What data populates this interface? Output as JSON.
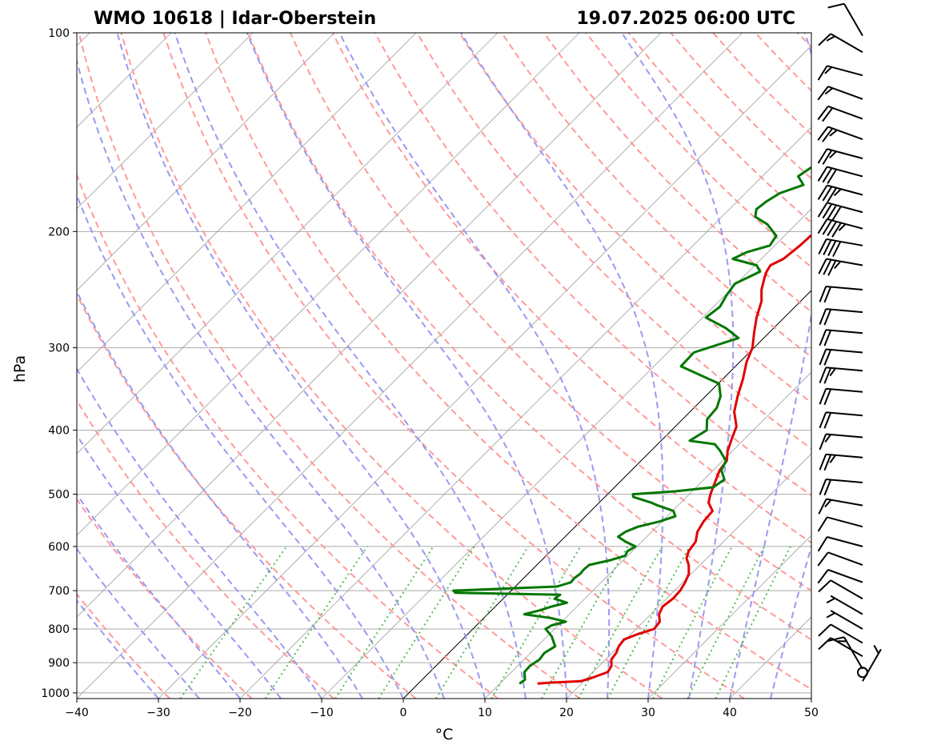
{
  "header": {
    "station": "WMO 10618 | Idar-Oberstein",
    "datetime": "19.07.2025 06:00 UTC"
  },
  "chart_data": {
    "type": "line",
    "subtype": "skew-t log-p diagram",
    "xlabel": "°C",
    "ylabel": "hPa",
    "xlim": [
      -40,
      50
    ],
    "ylim": [
      1020,
      100
    ],
    "y_scale": "log",
    "x_ticks": [
      -40,
      -30,
      -20,
      -10,
      0,
      10,
      20,
      30,
      40,
      50
    ],
    "x_tick_labels": [
      "−40",
      "−30",
      "−20",
      "−10",
      "0",
      "10",
      "20",
      "30",
      "40",
      "50"
    ],
    "y_ticks": [
      100,
      200,
      300,
      400,
      500,
      600,
      700,
      800,
      900,
      1000
    ],
    "y_tick_labels": [
      "100",
      "200",
      "300",
      "400",
      "500",
      "600",
      "700",
      "800",
      "900",
      "1000"
    ],
    "grid": true,
    "colors": {
      "temperature": "#e00000",
      "dewpoint": "#007700",
      "dry_adiabats": "#ff9a9a",
      "moist_adiabats": "#9a9af0",
      "mixing_ratio": "#55bb55",
      "isotherms": "#888888",
      "zero_isotherm": "#000000",
      "grid": "#aaaaaa"
    },
    "series": [
      {
        "key": "temperature",
        "points": [
          [
            968,
            14.6
          ],
          [
            965,
            16.0
          ],
          [
            960,
            19.6
          ],
          [
            950,
            20.5
          ],
          [
            930,
            21.8
          ],
          [
            910,
            21.5
          ],
          [
            890,
            20.7
          ],
          [
            870,
            20.5
          ],
          [
            850,
            20.0
          ],
          [
            830,
            19.8
          ],
          [
            815,
            20.8
          ],
          [
            800,
            22.2
          ],
          [
            780,
            22.0
          ],
          [
            760,
            21.0
          ],
          [
            740,
            20.5
          ],
          [
            720,
            20.8
          ],
          [
            700,
            20.7
          ],
          [
            680,
            20.3
          ],
          [
            660,
            19.7
          ],
          [
            640,
            18.6
          ],
          [
            625,
            17.5
          ],
          [
            610,
            16.9
          ],
          [
            590,
            16.6
          ],
          [
            570,
            15.6
          ],
          [
            550,
            15.1
          ],
          [
            530,
            14.9
          ],
          [
            515,
            13.4
          ],
          [
            500,
            12.6
          ],
          [
            480,
            11.7
          ],
          [
            460,
            10.8
          ],
          [
            445,
            10.5
          ],
          [
            430,
            9.4
          ],
          [
            410,
            8.3
          ],
          [
            395,
            7.5
          ],
          [
            375,
            5.4
          ],
          [
            355,
            3.9
          ],
          [
            335,
            2.5
          ],
          [
            315,
            0.8
          ],
          [
            300,
            -0.2
          ],
          [
            285,
            -1.8
          ],
          [
            270,
            -3.4
          ],
          [
            255,
            -4.8
          ],
          [
            245,
            -6.2
          ],
          [
            235,
            -7.3
          ],
          [
            230,
            -7.8
          ],
          [
            225,
            -8.1
          ],
          [
            220,
            -7.3
          ],
          [
            210,
            -6.9
          ],
          [
            203,
            -6.8
          ],
          [
            197,
            -5.6
          ],
          [
            190,
            -3.6
          ],
          [
            185,
            -2.4
          ],
          [
            178,
            -1.2
          ],
          [
            172,
            0.2
          ],
          [
            167,
            1.1
          ],
          [
            162,
            2.4
          ],
          [
            155,
            3.3
          ],
          [
            148,
            4.3
          ],
          [
            143,
            5.3
          ],
          [
            138,
            6.7
          ],
          [
            132,
            7.6
          ],
          [
            126,
            8.4
          ],
          [
            121,
            9.6
          ],
          [
            116,
            10.4
          ],
          [
            111,
            11.2
          ],
          [
            106,
            12.3
          ],
          [
            101,
            13.6
          ]
        ]
      },
      {
        "key": "dewpoint",
        "points": [
          [
            968,
            12.4
          ],
          [
            955,
            12.6
          ],
          [
            930,
            11.6
          ],
          [
            910,
            11.5
          ],
          [
            890,
            11.9
          ],
          [
            870,
            11.7
          ],
          [
            850,
            12.2
          ],
          [
            820,
            10.5
          ],
          [
            800,
            8.9
          ],
          [
            790,
            9.2
          ],
          [
            780,
            10.5
          ],
          [
            770,
            8.2
          ],
          [
            760,
            4.5
          ],
          [
            750,
            5.9
          ],
          [
            740,
            6.9
          ],
          [
            730,
            8.3
          ],
          [
            720,
            6.3
          ],
          [
            710,
            6.5
          ],
          [
            705,
            -6.6
          ],
          [
            700,
            -7.1
          ],
          [
            690,
            5.1
          ],
          [
            680,
            6.3
          ],
          [
            670,
            6.2
          ],
          [
            660,
            6.4
          ],
          [
            650,
            6.3
          ],
          [
            640,
            6.4
          ],
          [
            630,
            8.3
          ],
          [
            620,
            9.7
          ],
          [
            610,
            9.4
          ],
          [
            600,
            9.8
          ],
          [
            590,
            8.0
          ],
          [
            580,
            6.5
          ],
          [
            570,
            6.8
          ],
          [
            560,
            7.7
          ],
          [
            550,
            9.7
          ],
          [
            540,
            11.0
          ],
          [
            530,
            10.1
          ],
          [
            520,
            7.5
          ],
          [
            515,
            6.4
          ],
          [
            505,
            3.5
          ],
          [
            500,
            3.1
          ],
          [
            495,
            7.9
          ],
          [
            488,
            12.1
          ],
          [
            475,
            12.5
          ],
          [
            460,
            11.0
          ],
          [
            445,
            10.4
          ],
          [
            430,
            8.5
          ],
          [
            420,
            7.0
          ],
          [
            415,
            3.5
          ],
          [
            400,
            4.3
          ],
          [
            385,
            3.0
          ],
          [
            370,
            2.8
          ],
          [
            355,
            1.8
          ],
          [
            340,
            0.1
          ],
          [
            320,
            -6.7
          ],
          [
            305,
            -6.8
          ],
          [
            290,
            -3.1
          ],
          [
            280,
            -5.9
          ],
          [
            270,
            -9.6
          ],
          [
            260,
            -9.2
          ],
          [
            250,
            -9.8
          ],
          [
            240,
            -10.2
          ],
          [
            230,
            -8.6
          ],
          [
            225,
            -9.8
          ],
          [
            220,
            -13.5
          ],
          [
            215,
            -12.6
          ],
          [
            210,
            -10.6
          ],
          [
            203,
            -11.0
          ],
          [
            195,
            -13.5
          ],
          [
            190,
            -15.9
          ],
          [
            185,
            -16.7
          ],
          [
            180,
            -16.4
          ],
          [
            175,
            -15.8
          ],
          [
            170,
            -13.9
          ],
          [
            165,
            -15.6
          ],
          [
            160,
            -15.1
          ],
          [
            155,
            -14.2
          ],
          [
            150,
            -13.6
          ],
          [
            145,
            -12.4
          ],
          [
            140,
            -10.9
          ],
          [
            135,
            -9.6
          ],
          [
            128,
            -8.3
          ],
          [
            120,
            -7.5
          ],
          [
            112,
            -5.9
          ],
          [
            106,
            -4.6
          ],
          [
            101,
            -3.0
          ]
        ]
      }
    ],
    "wind_barbs": {
      "calm_at_hPa": 968,
      "barbs": [
        {
          "p": 960,
          "dir": 30,
          "speed": 5
        },
        {
          "p": 920,
          "dir": 330,
          "speed": 15
        },
        {
          "p": 880,
          "dir": 300,
          "speed": 10
        },
        {
          "p": 840,
          "dir": 300,
          "speed": 10
        },
        {
          "p": 800,
          "dir": 300,
          "speed": 5
        },
        {
          "p": 760,
          "dir": 300,
          "speed": 5
        },
        {
          "p": 720,
          "dir": 300,
          "speed": 10
        },
        {
          "p": 680,
          "dir": 290,
          "speed": 10
        },
        {
          "p": 640,
          "dir": 290,
          "speed": 10
        },
        {
          "p": 600,
          "dir": 285,
          "speed": 10
        },
        {
          "p": 560,
          "dir": 285,
          "speed": 10
        },
        {
          "p": 520,
          "dir": 280,
          "speed": 15
        },
        {
          "p": 480,
          "dir": 275,
          "speed": 20
        },
        {
          "p": 440,
          "dir": 275,
          "speed": 25
        },
        {
          "p": 410,
          "dir": 275,
          "speed": 15
        },
        {
          "p": 380,
          "dir": 275,
          "speed": 20
        },
        {
          "p": 350,
          "dir": 275,
          "speed": 20
        },
        {
          "p": 325,
          "dir": 275,
          "speed": 25
        },
        {
          "p": 305,
          "dir": 275,
          "speed": 20
        },
        {
          "p": 285,
          "dir": 275,
          "speed": 20
        },
        {
          "p": 265,
          "dir": 275,
          "speed": 20
        },
        {
          "p": 245,
          "dir": 275,
          "speed": 20
        },
        {
          "p": 225,
          "dir": 280,
          "speed": 35
        },
        {
          "p": 210,
          "dir": 280,
          "speed": 40
        },
        {
          "p": 198,
          "dir": 285,
          "speed": 45
        },
        {
          "p": 187,
          "dir": 285,
          "speed": 40
        },
        {
          "p": 176,
          "dir": 285,
          "speed": 35
        },
        {
          "p": 165,
          "dir": 285,
          "speed": 30
        },
        {
          "p": 155,
          "dir": 285,
          "speed": 25
        },
        {
          "p": 145,
          "dir": 290,
          "speed": 25
        },
        {
          "p": 135,
          "dir": 290,
          "speed": 20
        },
        {
          "p": 126,
          "dir": 290,
          "speed": 15
        },
        {
          "p": 116,
          "dir": 285,
          "speed": 15
        },
        {
          "p": 107,
          "dir": 300,
          "speed": 15
        },
        {
          "p": 101,
          "dir": 330,
          "speed": 10
        }
      ]
    }
  }
}
